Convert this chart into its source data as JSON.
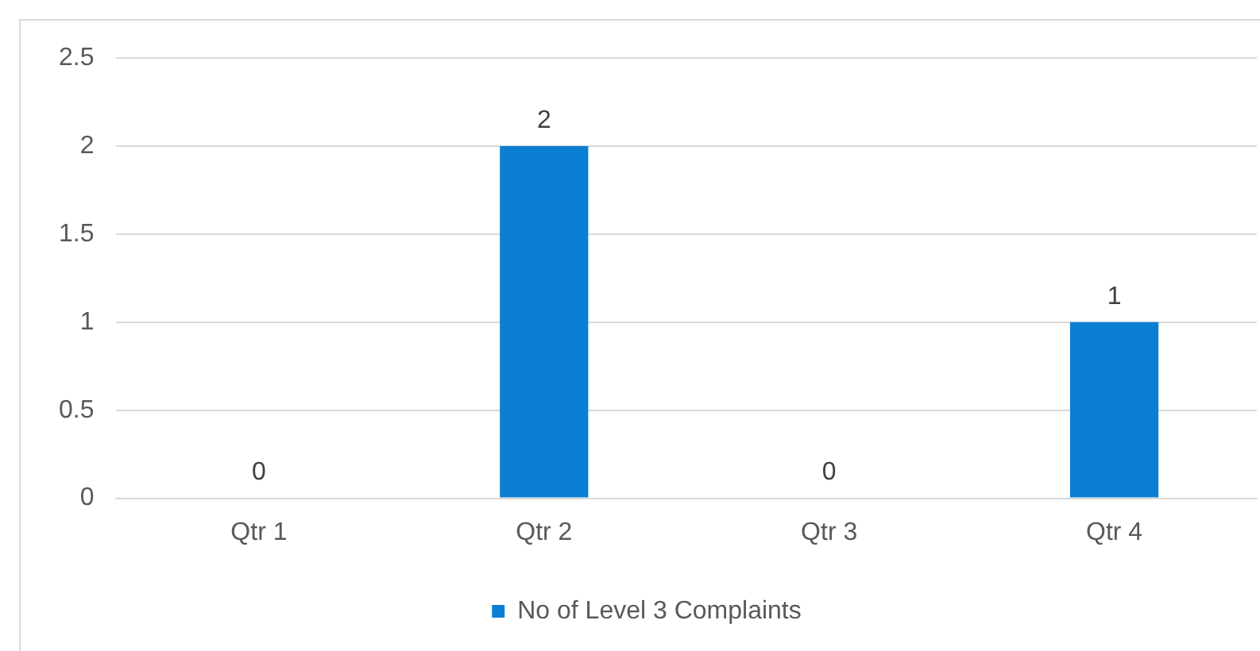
{
  "chart_data": {
    "type": "bar",
    "categories": [
      "Qtr 1",
      "Qtr 2",
      "Qtr 3",
      "Qtr 4"
    ],
    "series": [
      {
        "name": "No of Level 3 Complaints",
        "color": "#0a7fd4",
        "values": [
          0,
          2,
          0,
          1
        ]
      }
    ],
    "ylim": [
      0,
      2.5
    ],
    "yticks": [
      0,
      0.5,
      1,
      1.5,
      2,
      2.5
    ],
    "grid": "y",
    "legend": "bottom",
    "data_labels": true
  }
}
